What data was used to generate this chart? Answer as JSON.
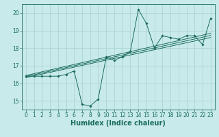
{
  "title": "",
  "xlabel": "Humidex (Indice chaleur)",
  "ylabel": "",
  "bg_color": "#c8eaea",
  "grid_color": "#a8d0d0",
  "line_color": "#1a6b5a",
  "xlim": [
    -0.5,
    23.5
  ],
  "ylim": [
    14.5,
    20.5
  ],
  "yticks": [
    15,
    16,
    17,
    18,
    19,
    20
  ],
  "xticks": [
    0,
    1,
    2,
    3,
    4,
    5,
    6,
    7,
    8,
    9,
    10,
    11,
    12,
    13,
    14,
    15,
    16,
    17,
    18,
    19,
    20,
    21,
    22,
    23
  ],
  "scatter_x": [
    0,
    1,
    2,
    3,
    4,
    5,
    6,
    7,
    8,
    9,
    10,
    11,
    12,
    13,
    14,
    15,
    16,
    17,
    18,
    19,
    20,
    21,
    22,
    23
  ],
  "scatter_y": [
    16.4,
    16.4,
    16.4,
    16.4,
    16.4,
    16.5,
    16.7,
    14.8,
    14.7,
    15.1,
    17.5,
    17.3,
    17.5,
    17.8,
    20.2,
    19.4,
    18.0,
    18.7,
    18.6,
    18.5,
    18.7,
    18.7,
    18.2,
    19.7
  ],
  "reg_lines": [
    {
      "x": [
        0,
        23
      ],
      "y": [
        16.38,
        18.72
      ]
    },
    {
      "x": [
        0,
        23
      ],
      "y": [
        16.44,
        18.84
      ]
    },
    {
      "x": [
        0,
        23
      ],
      "y": [
        16.32,
        18.6
      ]
    }
  ],
  "font_size_tick": 5.5,
  "font_size_label": 7.0
}
